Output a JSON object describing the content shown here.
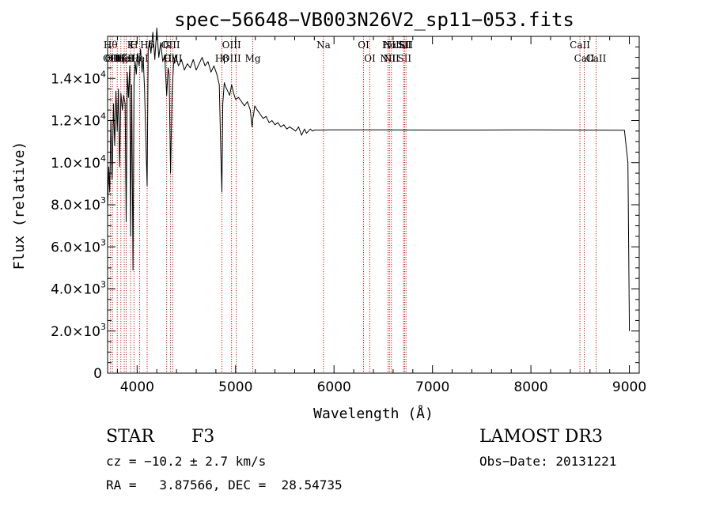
{
  "chart_data": {
    "type": "line",
    "title": "spec−56648−VB003N26V2_sp11−053.fits",
    "xlabel": "Wavelength (Å)",
    "ylabel": "Flux (relative)",
    "xlim": [
      3700,
      9100
    ],
    "ylim": [
      0,
      16000
    ],
    "xticks": [
      4000,
      5000,
      6000,
      7000,
      8000,
      9000
    ],
    "xtick_labels": [
      "4000",
      "5000",
      "6000",
      "7000",
      "8000",
      "9000"
    ],
    "yticks": [
      {
        "value": 0,
        "mant": "0",
        "exp": ""
      },
      {
        "value": 2000,
        "mant": "2.0×10",
        "exp": "3"
      },
      {
        "value": 4000,
        "mant": "4.0×10",
        "exp": "3"
      },
      {
        "value": 6000,
        "mant": "6.0×10",
        "exp": "3"
      },
      {
        "value": 8000,
        "mant": "8.0×10",
        "exp": "3"
      },
      {
        "value": 10000,
        "mant": "1.0×10",
        "exp": "4"
      },
      {
        "value": 12000,
        "mant": "1.2×10",
        "exp": "4"
      },
      {
        "value": 14000,
        "mant": "1.4×10",
        "exp": "4"
      }
    ],
    "series": [
      {
        "name": "flux",
        "x": [
          3700,
          3712,
          3722,
          3734,
          3746,
          3760,
          3772,
          3784,
          3798,
          3810,
          3822,
          3835,
          3850,
          3862,
          3878,
          3889,
          3900,
          3912,
          3925,
          3934,
          3945,
          3958,
          3968,
          3980,
          3992,
          4005,
          4020,
          4035,
          4050,
          4062,
          4075,
          4092,
          4102,
          4112,
          4125,
          4140,
          4160,
          4180,
          4200,
          4220,
          4240,
          4260,
          4280,
          4300,
          4315,
          4325,
          4340,
          4355,
          4370,
          4390,
          4420,
          4450,
          4480,
          4510,
          4540,
          4570,
          4600,
          4630,
          4660,
          4690,
          4720,
          4750,
          4780,
          4810,
          4835,
          4850,
          4861,
          4870,
          4885,
          4900,
          4920,
          4940,
          4960,
          4980,
          5000,
          5030,
          5060,
          5090,
          5120,
          5150,
          5167,
          5175,
          5183,
          5195,
          5220,
          5250,
          5280,
          5310,
          5340,
          5370,
          5400,
          5430,
          5460,
          5490,
          5520,
          5550,
          5580,
          5610,
          5640,
          5670,
          5700,
          5720,
          5740,
          5760,
          5780,
          5800,
          5850,
          5893,
          5950,
          6000,
          6500,
          7000,
          7500,
          8000,
          8500,
          8950,
          8985,
          9000
        ],
        "y": [
          7800,
          9800,
          8600,
          12000,
          9200,
          12800,
          10800,
          13400,
          11500,
          13500,
          9800,
          13300,
          12500,
          13200,
          12800,
          7200,
          14300,
          13100,
          14600,
          6500,
          13700,
          4900,
          13800,
          14800,
          14200,
          15200,
          14600,
          15400,
          14300,
          15000,
          13500,
          10500,
          8900,
          15300,
          15800,
          15200,
          16200,
          14900,
          16400,
          15000,
          15700,
          14800,
          15100,
          13200,
          14500,
          14200,
          9500,
          13300,
          14700,
          15100,
          14600,
          14900,
          14400,
          14700,
          14500,
          14900,
          14400,
          14700,
          15000,
          14600,
          14800,
          14300,
          14600,
          14200,
          13700,
          10500,
          8600,
          12800,
          13800,
          13600,
          13400,
          13200,
          13700,
          13300,
          13000,
          13100,
          12900,
          12700,
          12900,
          12500,
          11700,
          12100,
          12300,
          12700,
          12500,
          12300,
          12100,
          12200,
          11900,
          12000,
          11800,
          11900,
          11700,
          11800,
          11600,
          11700,
          11600,
          11500,
          11700,
          11300,
          11600,
          11400,
          11500,
          11600,
          11500,
          11550,
          11550,
          11550,
          11560,
          11560,
          11560,
          11550,
          11550,
          11560,
          11550,
          11540,
          10000,
          2000
        ]
      }
    ],
    "lines": [
      {
        "x": 3730,
        "labels": [
          "Hθ",
          "OII"
        ]
      },
      {
        "x": 3750,
        "labels": [
          "",
          "OII"
        ]
      },
      {
        "x": 3798,
        "labels": [
          "",
          "Hη"
        ]
      },
      {
        "x": 3835,
        "labels": [
          "",
          "Hζ"
        ]
      },
      {
        "x": 3869,
        "labels": [
          "",
          "Hel"
        ]
      },
      {
        "x": 3889,
        "labels": [
          "",
          "HeI"
        ]
      },
      {
        "x": 3934,
        "labels": [
          "K",
          ""
        ]
      },
      {
        "x": 3968,
        "labels": [
          "H",
          "Hε"
        ]
      },
      {
        "x": 4026,
        "labels": [
          "",
          "HeI"
        ]
      },
      {
        "x": 4102,
        "labels": [
          "Hδ",
          ""
        ]
      },
      {
        "x": 4300,
        "labels": [
          "G",
          ""
        ]
      },
      {
        "x": 4340,
        "labels": [
          "OIII",
          "Hγ"
        ]
      },
      {
        "x": 4363,
        "labels": [
          "",
          "OIII"
        ]
      },
      {
        "x": 4861,
        "labels": [
          "",
          "Hβ"
        ]
      },
      {
        "x": 4959,
        "labels": [
          "OIII",
          "OIII"
        ]
      },
      {
        "x": 5007,
        "labels": [
          "",
          ""
        ]
      },
      {
        "x": 5175,
        "labels": [
          "",
          "Mg"
        ]
      },
      {
        "x": 5893,
        "labels": [
          "Na",
          ""
        ]
      },
      {
        "x": 6300,
        "labels": [
          "OI",
          ""
        ]
      },
      {
        "x": 6364,
        "labels": [
          "",
          "OI"
        ]
      },
      {
        "x": 6548,
        "labels": [
          "",
          "NII"
        ]
      },
      {
        "x": 6563,
        "labels": [
          "Hα",
          ""
        ]
      },
      {
        "x": 6583,
        "labels": [
          "NII",
          "NII"
        ]
      },
      {
        "x": 6707,
        "labels": [
          "Li",
          ""
        ]
      },
      {
        "x": 6716,
        "labels": [
          "SII",
          "SII"
        ]
      },
      {
        "x": 6731,
        "labels": [
          "SII",
          ""
        ]
      },
      {
        "x": 8498,
        "labels": [
          "CaII",
          ""
        ]
      },
      {
        "x": 8542,
        "labels": [
          "",
          "CaII"
        ]
      },
      {
        "x": 8662,
        "labels": [
          "",
          "CaII"
        ]
      }
    ]
  },
  "info": {
    "object_class": "STAR",
    "subclass": "F3",
    "survey": "LAMOST DR3",
    "cz": "cz = −10.2 ± 2.7 km/s",
    "obs_date": "Obs−Date: 20131221",
    "coords": "RA =   3.87566, DEC =  28.54735"
  }
}
